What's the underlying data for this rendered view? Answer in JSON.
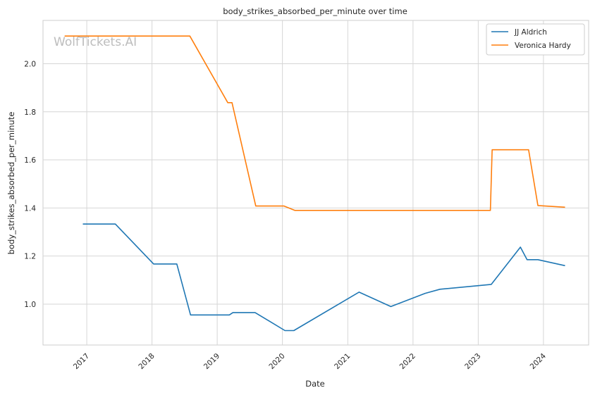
{
  "chart_data": {
    "type": "line",
    "title": "body_strikes_absorbed_per_minute over time",
    "xlabel": "Date",
    "ylabel": "body_strikes_absorbed_per_minute",
    "watermark": "WolfTickets.AI",
    "x_ticks": [
      "2017",
      "2018",
      "2019",
      "2020",
      "2021",
      "2022",
      "2023",
      "2024"
    ],
    "y_ticks": [
      "1.0",
      "1.2",
      "1.4",
      "1.6",
      "1.8",
      "2.0"
    ],
    "ylim": [
      0.83,
      2.18
    ],
    "xlim": [
      "2016-05-01",
      "2024-09-10"
    ],
    "grid": true,
    "legend_position": "top-right",
    "series": [
      {
        "name": "JJ Aldrich",
        "color": "#1f77b4",
        "points": [
          [
            "2016-12-10",
            1.333
          ],
          [
            "2017-06-10",
            1.333
          ],
          [
            "2018-01-10",
            1.167
          ],
          [
            "2018-05-20",
            1.167
          ],
          [
            "2018-08-05",
            0.955
          ],
          [
            "2019-03-10",
            0.955
          ],
          [
            "2019-03-30",
            0.965
          ],
          [
            "2019-08-01",
            0.965
          ],
          [
            "2020-01-15",
            0.89
          ],
          [
            "2020-03-05",
            0.89
          ],
          [
            "2021-03-05",
            1.05
          ],
          [
            "2021-08-30",
            0.99
          ],
          [
            "2022-03-10",
            1.045
          ],
          [
            "2022-06-01",
            1.062
          ],
          [
            "2023-03-15",
            1.082
          ],
          [
            "2023-08-25",
            1.237
          ],
          [
            "2023-10-01",
            1.185
          ],
          [
            "2023-12-01",
            1.185
          ],
          [
            "2024-05-01",
            1.16
          ]
        ]
      },
      {
        "name": "Veronica Hardy",
        "color": "#ff7f0e",
        "points": [
          [
            "2016-08-30",
            2.115
          ],
          [
            "2018-08-01",
            2.115
          ],
          [
            "2019-03-01",
            1.838
          ],
          [
            "2019-03-25",
            1.838
          ],
          [
            "2019-08-05",
            1.408
          ],
          [
            "2020-01-10",
            1.408
          ],
          [
            "2020-03-10",
            1.39
          ],
          [
            "2023-03-10",
            1.39
          ],
          [
            "2023-03-20",
            1.642
          ],
          [
            "2023-10-10",
            1.642
          ],
          [
            "2023-12-01",
            1.41
          ],
          [
            "2024-05-01",
            1.403
          ]
        ]
      }
    ]
  }
}
